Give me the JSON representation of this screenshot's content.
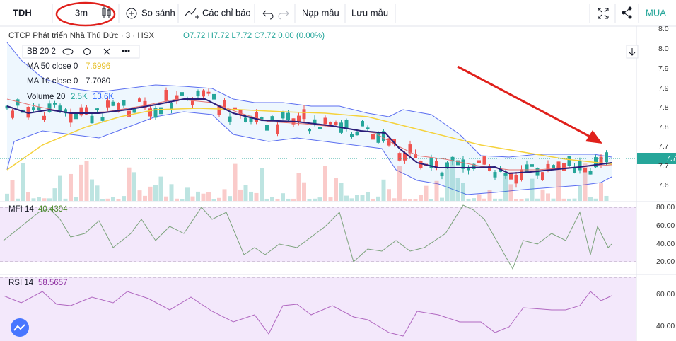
{
  "toolbar": {
    "symbol": "TDH",
    "interval": "3m",
    "compare": "So sánh",
    "indicators": "Các chỉ báo",
    "load": "Nạp mẫu",
    "save": "Lưu mẫu",
    "buy": "MUA"
  },
  "legend": {
    "title": "CTCP Phát triển Nhà Thủ Đức · 3 · HSX",
    "ohlc": "O7.72 H7.72 L7.72 C7.72 0.00 (0.00%)",
    "bb": "BB 20 2",
    "ma50": "MA 50 close 0",
    "ma50_value": "7.6996",
    "ma10": "MA 10 close 0",
    "ma10_value": "7.7080",
    "volume": "Volume 20",
    "volume_value1": "2.5K",
    "volume_value2": "13.6K"
  },
  "price_axis": [
    "8.0",
    "8.0",
    "7.9",
    "7.9",
    "7.8",
    "7.8",
    "7.7",
    "7.7",
    "7.6"
  ],
  "price_marker": "7.7",
  "mfi": {
    "label": "MFI 14",
    "value": "40.4394",
    "axis": [
      "80.00",
      "60.00",
      "40.00",
      "20.00"
    ]
  },
  "rsi": {
    "label": "RSI 14",
    "value": "58.5657",
    "axis": [
      "60.00",
      "40.00"
    ]
  }
}
